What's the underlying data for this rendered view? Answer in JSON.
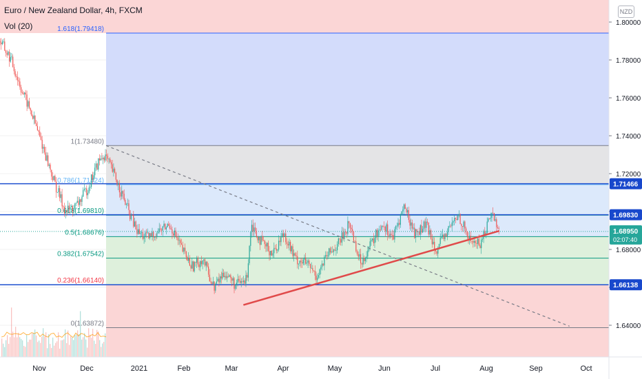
{
  "header": {
    "symbol_title": "Euro / New Zealand Dollar, 4h, FXCM",
    "volume_indicator": "Vol (20)",
    "currency_badge": "NZD"
  },
  "colors": {
    "up_candle": "#26a69a",
    "down_candle": "#ef5350",
    "fib_blue_zone": "#d3dcfb",
    "fib_grey_zone": "#e4e4e6",
    "fib_light_blue_zone": "#dce9fb",
    "fib_green_zone": "#def0dc",
    "fib_red_zone": "#fbd6d6",
    "horizontal_line": "#1d4fcf",
    "trendline": "#e04a4a",
    "price_tag": "#1848cc",
    "current_price_tag": "#26a69a"
  },
  "chart_data": {
    "type": "candlestick",
    "title": "Euro / New Zealand Dollar, 4h, FXCM",
    "y_axis": {
      "ticks": [
        "1.80000",
        "1.78000",
        "1.76000",
        "1.74000",
        "1.72000",
        "1.70000",
        "1.68000",
        "1.66000",
        "1.64000"
      ],
      "range": [
        1.6335,
        1.8085
      ]
    },
    "x_axis": {
      "ticks": [
        "Nov",
        "Dec",
        "2021",
        "Feb",
        "Mar",
        "Apr",
        "May",
        "Jun",
        "Jul",
        "Aug",
        "Sep",
        "Oct"
      ]
    },
    "price_labels": [
      {
        "label": "1.71466",
        "value": 1.71466,
        "kind": "level"
      },
      {
        "label": "1.69830",
        "value": 1.6983,
        "kind": "level"
      },
      {
        "label": "1.68950",
        "value": 1.6895,
        "kind": "current"
      },
      {
        "label": "1.66138",
        "value": 1.66138,
        "kind": "level"
      }
    ],
    "countdown": "02:07:40",
    "horizontal_lines": [
      1.71466,
      1.6983,
      1.66138
    ],
    "fib_levels": [
      {
        "label": "1.618(1.79418)",
        "value": 1.79418
      },
      {
        "label": "1(1.73480)",
        "value": 1.7348
      },
      {
        "label": "0.786(1.71424)",
        "value": 1.71424
      },
      {
        "label": "0.618(1.69810)",
        "value": 1.6981
      },
      {
        "label": "0.5(1.68676)",
        "value": 1.68676
      },
      {
        "label": "0.382(1.67542)",
        "value": 1.67542
      },
      {
        "label": "0.236(1.66140)",
        "value": 1.6614
      },
      {
        "label": "0(1.63872)",
        "value": 1.63872
      }
    ],
    "trendline_support": [
      {
        "date": "2021-03-20",
        "price": 1.6507
      },
      {
        "date": "2021-08-31",
        "price": 1.6898
      }
    ],
    "trendline_dashed": [
      {
        "date": "2020-12-22",
        "price": 1.7348
      },
      {
        "date": "2021-10-15",
        "price": 1.6395
      }
    ],
    "price_path": [
      [
        "2020-10-15",
        1.79
      ],
      [
        "2020-10-22",
        1.78
      ],
      [
        "2020-10-29",
        1.764
      ],
      [
        "2020-11-05",
        1.75
      ],
      [
        "2020-11-12",
        1.733
      ],
      [
        "2020-11-19",
        1.715
      ],
      [
        "2020-11-26",
        1.7
      ],
      [
        "2020-12-03",
        1.703
      ],
      [
        "2020-12-10",
        1.712
      ],
      [
        "2020-12-17",
        1.726
      ],
      [
        "2020-12-21",
        1.73
      ],
      [
        "2020-12-28",
        1.718
      ],
      [
        "2021-01-04",
        1.703
      ],
      [
        "2021-01-11",
        1.689
      ],
      [
        "2021-01-18",
        1.686
      ],
      [
        "2021-01-25",
        1.69
      ],
      [
        "2021-02-01",
        1.693
      ],
      [
        "2021-02-08",
        1.681
      ],
      [
        "2021-02-15",
        1.671
      ],
      [
        "2021-02-22",
        1.675
      ],
      [
        "2021-03-01",
        1.66
      ],
      [
        "2021-03-08",
        1.668
      ],
      [
        "2021-03-15",
        1.661
      ],
      [
        "2021-03-22",
        1.664
      ],
      [
        "2021-03-25",
        1.694
      ],
      [
        "2021-04-01",
        1.683
      ],
      [
        "2021-04-08",
        1.678
      ],
      [
        "2021-04-15",
        1.689
      ],
      [
        "2021-04-22",
        1.675
      ],
      [
        "2021-04-29",
        1.673
      ],
      [
        "2021-05-06",
        1.666
      ],
      [
        "2021-05-13",
        1.677
      ],
      [
        "2021-05-20",
        1.683
      ],
      [
        "2021-05-27",
        1.694
      ],
      [
        "2021-06-03",
        1.673
      ],
      [
        "2021-06-10",
        1.683
      ],
      [
        "2021-06-17",
        1.694
      ],
      [
        "2021-06-24",
        1.686
      ],
      [
        "2021-07-01",
        1.703
      ],
      [
        "2021-07-08",
        1.688
      ],
      [
        "2021-07-15",
        1.693
      ],
      [
        "2021-07-22",
        1.68
      ],
      [
        "2021-07-29",
        1.69
      ],
      [
        "2021-08-05",
        1.698
      ],
      [
        "2021-08-12",
        1.685
      ],
      [
        "2021-08-19",
        1.683
      ],
      [
        "2021-08-26",
        1.7
      ],
      [
        "2021-08-31",
        1.6895
      ]
    ],
    "volume_indicator": "Vol (20)"
  }
}
